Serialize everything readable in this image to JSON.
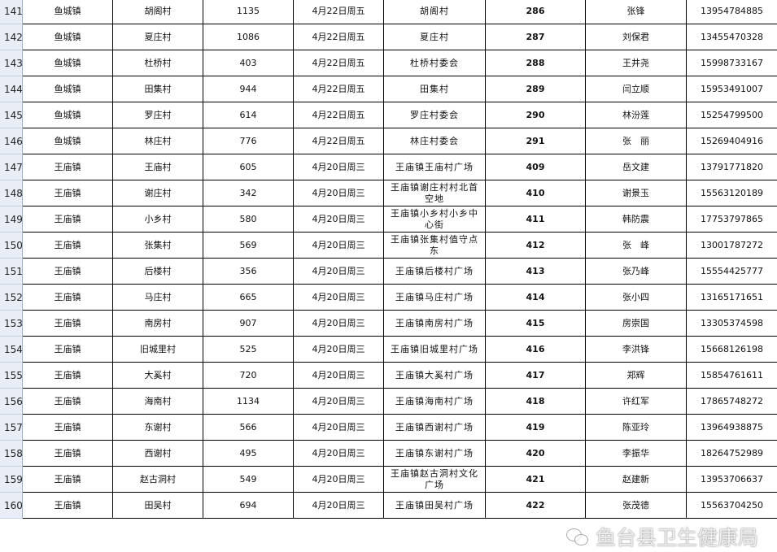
{
  "rows": [
    {
      "n": "141",
      "town": "鱼城镇",
      "village": "胡阁村",
      "count": "1135",
      "date": "4月22日周五",
      "site": "胡阁村",
      "no": "286",
      "person": "张锋",
      "phone": "13954784885"
    },
    {
      "n": "142",
      "town": "鱼城镇",
      "village": "夏庄村",
      "count": "1086",
      "date": "4月22日周五",
      "site": "夏庄村",
      "no": "287",
      "person": "刘保君",
      "phone": "13455470328"
    },
    {
      "n": "143",
      "town": "鱼城镇",
      "village": "杜桥村",
      "count": "403",
      "date": "4月22日周五",
      "site": "杜桥村委会",
      "no": "288",
      "person": "王井尧",
      "phone": "15998733167"
    },
    {
      "n": "144",
      "town": "鱼城镇",
      "village": "田集村",
      "count": "944",
      "date": "4月22日周五",
      "site": "田集村",
      "no": "289",
      "person": "闫立顺",
      "phone": "15953491007"
    },
    {
      "n": "145",
      "town": "鱼城镇",
      "village": "罗庄村",
      "count": "614",
      "date": "4月22日周五",
      "site": "罗庄村委会",
      "no": "290",
      "person": "林汾莲",
      "phone": "15254799500"
    },
    {
      "n": "146",
      "town": "鱼城镇",
      "village": "林庄村",
      "count": "776",
      "date": "4月22日周五",
      "site": "林庄村委会",
      "no": "291",
      "person": "张　丽",
      "phone": "15269404916"
    },
    {
      "n": "147",
      "town": "王庙镇",
      "village": "王庙村",
      "count": "605",
      "date": "4月20日周三",
      "site": "王庙镇王庙村广场",
      "no": "409",
      "person": "岳文建",
      "phone": "13791771820"
    },
    {
      "n": "148",
      "town": "王庙镇",
      "village": "谢庄村",
      "count": "342",
      "date": "4月20日周三",
      "site": "王庙镇谢庄村村北首空地",
      "no": "410",
      "person": "谢景玉",
      "phone": "15563120189"
    },
    {
      "n": "149",
      "town": "王庙镇",
      "village": "小乡村",
      "count": "580",
      "date": "4月20日周三",
      "site": "王庙镇小乡村小乡中心街",
      "no": "411",
      "person": "韩防震",
      "phone": "17753797865"
    },
    {
      "n": "150",
      "town": "王庙镇",
      "village": "张集村",
      "count": "569",
      "date": "4月20日周三",
      "site": "王庙镇张集村值守点东",
      "no": "412",
      "person": "张　峰",
      "phone": "13001787272"
    },
    {
      "n": "151",
      "town": "王庙镇",
      "village": "后楼村",
      "count": "356",
      "date": "4月20日周三",
      "site": "王庙镇后楼村广场",
      "no": "413",
      "person": "张乃峰",
      "phone": "15554425777"
    },
    {
      "n": "152",
      "town": "王庙镇",
      "village": "马庄村",
      "count": "665",
      "date": "4月20日周三",
      "site": "王庙镇马庄村广场",
      "no": "414",
      "person": "张小四",
      "phone": "13165171651"
    },
    {
      "n": "153",
      "town": "王庙镇",
      "village": "南房村",
      "count": "907",
      "date": "4月20日周三",
      "site": "王庙镇南房村广场",
      "no": "415",
      "person": "房崇国",
      "phone": "13305374598"
    },
    {
      "n": "154",
      "town": "王庙镇",
      "village": "旧城里村",
      "count": "525",
      "date": "4月20日周三",
      "site": "王庙镇旧城里村广场",
      "no": "416",
      "person": "李洪锋",
      "phone": "15668126198"
    },
    {
      "n": "155",
      "town": "王庙镇",
      "village": "大奚村",
      "count": "720",
      "date": "4月20日周三",
      "site": "王庙镇大奚村广场",
      "no": "417",
      "person": "郑辉",
      "phone": "15854761611"
    },
    {
      "n": "156",
      "town": "王庙镇",
      "village": "海南村",
      "count": "1134",
      "date": "4月20日周三",
      "site": "王庙镇海南村广场",
      "no": "418",
      "person": "许红军",
      "phone": "17865748272"
    },
    {
      "n": "157",
      "town": "王庙镇",
      "village": "东谢村",
      "count": "566",
      "date": "4月20日周三",
      "site": "王庙镇西谢村广场",
      "no": "419",
      "person": "陈亚玲",
      "phone": "13964938875"
    },
    {
      "n": "158",
      "town": "王庙镇",
      "village": "西谢村",
      "count": "495",
      "date": "4月20日周三",
      "site": "王庙镇东谢村广场",
      "no": "420",
      "person": "李振华",
      "phone": "18264752989"
    },
    {
      "n": "159",
      "town": "王庙镇",
      "village": "赵古洞村",
      "count": "549",
      "date": "4月20日周三",
      "site": "王庙镇赵古洞村文化广场",
      "no": "421",
      "person": "赵建新",
      "phone": "13953706637"
    },
    {
      "n": "160",
      "town": "王庙镇",
      "village": "田吴村",
      "count": "694",
      "date": "4月20日周三",
      "site": "王庙镇田吴村广场",
      "no": "422",
      "person": "张茂德",
      "phone": "15563704250"
    }
  ],
  "watermark": {
    "text": "鱼台县卫生健康局",
    "icon": "wechat-icon"
  }
}
